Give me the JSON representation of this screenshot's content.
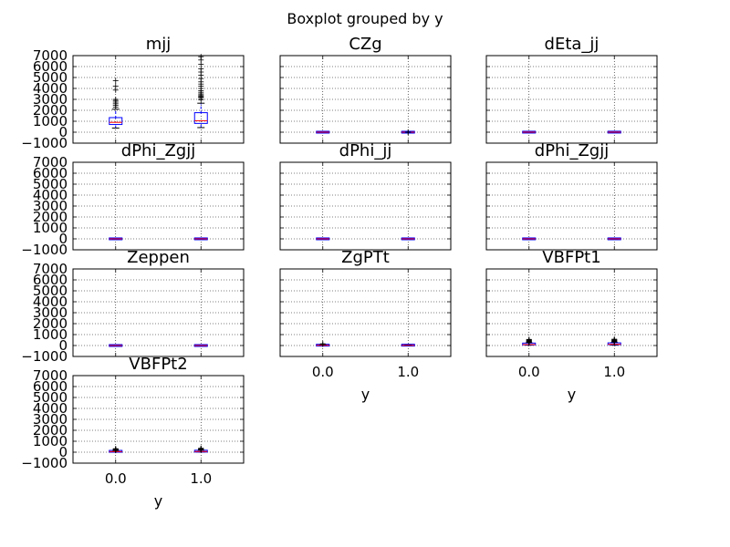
{
  "chart_data": {
    "type": "boxplot",
    "suptitle": "Boxplot grouped by y",
    "xlabel": "y",
    "categories": [
      "0.0",
      "1.0"
    ],
    "ylim": [
      -1000,
      7000
    ],
    "yticks": [
      -1000,
      0,
      1000,
      2000,
      3000,
      4000,
      5000,
      6000,
      7000
    ],
    "grid": true,
    "panels": [
      {
        "title": "mjj",
        "boxes": [
          {
            "whislo": 380,
            "q1": 620,
            "med": 900,
            "q3": 1250,
            "whishi": 2100,
            "fliers": [
              2300,
              2450,
              2600,
              2750,
              2900,
              3000,
              3850,
              4200,
              4700
            ]
          },
          {
            "whislo": 420,
            "q1": 720,
            "med": 1050,
            "q3": 1700,
            "whishi": 2650,
            "fliers": [
              2950,
              3100,
              3200,
              3300,
              3400,
              3500,
              3650,
              3800,
              4000,
              4200,
              4400,
              4600,
              4900,
              5200,
              5500,
              5800,
              6200,
              6600,
              6900
            ]
          }
        ]
      },
      {
        "title": "CZg",
        "boxes": [
          {
            "whislo": -3,
            "q1": -1,
            "med": 0,
            "q3": 1,
            "whishi": 3,
            "fliers": []
          },
          {
            "whislo": -3,
            "q1": -1,
            "med": 0,
            "q3": 1,
            "whishi": 3,
            "fliers": [
              8,
              -8
            ]
          }
        ]
      },
      {
        "title": "dEta_jj",
        "boxes": [
          {
            "whislo": 0,
            "q1": 1,
            "med": 2.5,
            "q3": 4,
            "whishi": 8,
            "fliers": []
          },
          {
            "whislo": 0,
            "q1": 2,
            "med": 4,
            "q3": 5.5,
            "whishi": 9,
            "fliers": []
          }
        ]
      },
      {
        "title": "dPhi_Zgjj",
        "boxes": [
          {
            "whislo": 0,
            "q1": 2.5,
            "med": 3,
            "q3": 3.1,
            "whishi": 3.2,
            "fliers": []
          },
          {
            "whislo": 0,
            "q1": 2.5,
            "med": 3,
            "q3": 3.1,
            "whishi": 3.2,
            "fliers": []
          }
        ]
      },
      {
        "title": "dPhi_jj",
        "boxes": [
          {
            "whislo": 0,
            "q1": 1,
            "med": 2,
            "q3": 2.7,
            "whishi": 3.2,
            "fliers": []
          },
          {
            "whislo": 0,
            "q1": 1,
            "med": 2,
            "q3": 2.7,
            "whishi": 3.2,
            "fliers": []
          }
        ]
      },
      {
        "title": "dPhi_Zgjj",
        "boxes": [
          {
            "whislo": 0,
            "q1": 2.5,
            "med": 3,
            "q3": 3.1,
            "whishi": 3.2,
            "fliers": []
          },
          {
            "whislo": 0,
            "q1": 2.5,
            "med": 3,
            "q3": 3.1,
            "whishi": 3.2,
            "fliers": []
          }
        ]
      },
      {
        "title": "Zeppen",
        "boxes": [
          {
            "whislo": -3,
            "q1": -1,
            "med": 0,
            "q3": 1,
            "whishi": 3,
            "fliers": []
          },
          {
            "whislo": -3,
            "q1": -1,
            "med": 0,
            "q3": 1,
            "whishi": 3,
            "fliers": []
          }
        ]
      },
      {
        "title": "ZgPTt",
        "boxes": [
          {
            "whislo": 0,
            "q1": 10,
            "med": 20,
            "q3": 35,
            "whishi": 80,
            "fliers": [
              120,
              160
            ]
          },
          {
            "whislo": 0,
            "q1": 10,
            "med": 20,
            "q3": 35,
            "whishi": 80,
            "fliers": []
          }
        ]
      },
      {
        "title": "VBFPt1",
        "boxes": [
          {
            "whislo": 30,
            "q1": 60,
            "med": 90,
            "q3": 140,
            "whishi": 240,
            "fliers": [
              270,
              300,
              330,
              360,
              400,
              440,
              480,
              520,
              560
            ]
          },
          {
            "whislo": 30,
            "q1": 70,
            "med": 110,
            "q3": 160,
            "whishi": 280,
            "fliers": [
              310,
              340,
              370,
              400,
              430,
              460,
              500,
              540,
              580
            ]
          }
        ]
      },
      {
        "title": "VBFPt2",
        "boxes": [
          {
            "whislo": 20,
            "q1": 40,
            "med": 55,
            "q3": 80,
            "whishi": 140,
            "fliers": [
              160,
              180,
              200,
              230,
              260,
              290,
              320
            ]
          },
          {
            "whislo": 20,
            "q1": 45,
            "med": 65,
            "q3": 95,
            "whishi": 170,
            "fliers": [
              190,
              210,
              240,
              270,
              300,
              330,
              360
            ]
          }
        ]
      }
    ]
  }
}
